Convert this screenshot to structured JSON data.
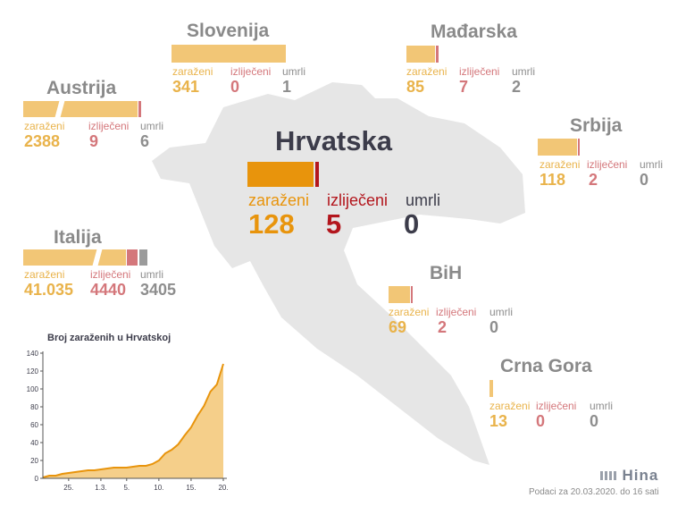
{
  "labels": {
    "infected": "zaraženi",
    "recovered": "izliječeni",
    "deaths": "umrli"
  },
  "colors": {
    "infected": "#f2c676",
    "infected_main": "#e8940c",
    "recovered": "#d4777b",
    "recovered_main": "#b3161d",
    "deaths": "#9b9b9b",
    "deaths_main": "#3c3c4a",
    "map": "#e6e6e6"
  },
  "countries": {
    "croatia": {
      "name": "Hrvatska",
      "infected": "128",
      "recovered": "5",
      "deaths": "0"
    },
    "slovenia": {
      "name": "Slovenija",
      "infected": "341",
      "recovered": "0",
      "deaths": "1"
    },
    "hungary": {
      "name": "Mađarska",
      "infected": "85",
      "recovered": "7",
      "deaths": "2"
    },
    "austria": {
      "name": "Austrija",
      "infected": "2388",
      "recovered": "9",
      "deaths": "6"
    },
    "serbia": {
      "name": "Srbija",
      "infected": "118",
      "recovered": "2",
      "deaths": "0"
    },
    "italy": {
      "name": "Italija",
      "infected": "41.035",
      "recovered": "4440",
      "deaths": "3405"
    },
    "bih": {
      "name": "BiH",
      "infected": "69",
      "recovered": "2",
      "deaths": "0"
    },
    "montenegro": {
      "name": "Crna Gora",
      "infected": "13",
      "recovered": "0",
      "deaths": "0"
    }
  },
  "chart_data": {
    "type": "area",
    "title": "Broj zaraženih u Hrvatskoj",
    "xlabel": "",
    "ylabel": "",
    "x_ticks": [
      "25.",
      "1.3.",
      "5.",
      "10.",
      "15.",
      "20."
    ],
    "y_ticks": [
      "0",
      "20",
      "40",
      "60",
      "80",
      "100",
      "120",
      "140"
    ],
    "ylim": [
      0,
      140
    ],
    "grid": false,
    "series": [
      {
        "values": [
          1,
          3,
          3,
          5,
          6,
          7,
          8,
          9,
          9,
          10,
          11,
          12,
          12,
          12,
          13,
          14,
          14,
          16,
          20,
          28,
          32,
          38,
          48,
          57,
          70,
          81,
          97,
          105,
          128
        ]
      }
    ]
  },
  "footer": {
    "source": "Podaci za 20.03.2020. do 16 sati",
    "logo": "Hina"
  }
}
